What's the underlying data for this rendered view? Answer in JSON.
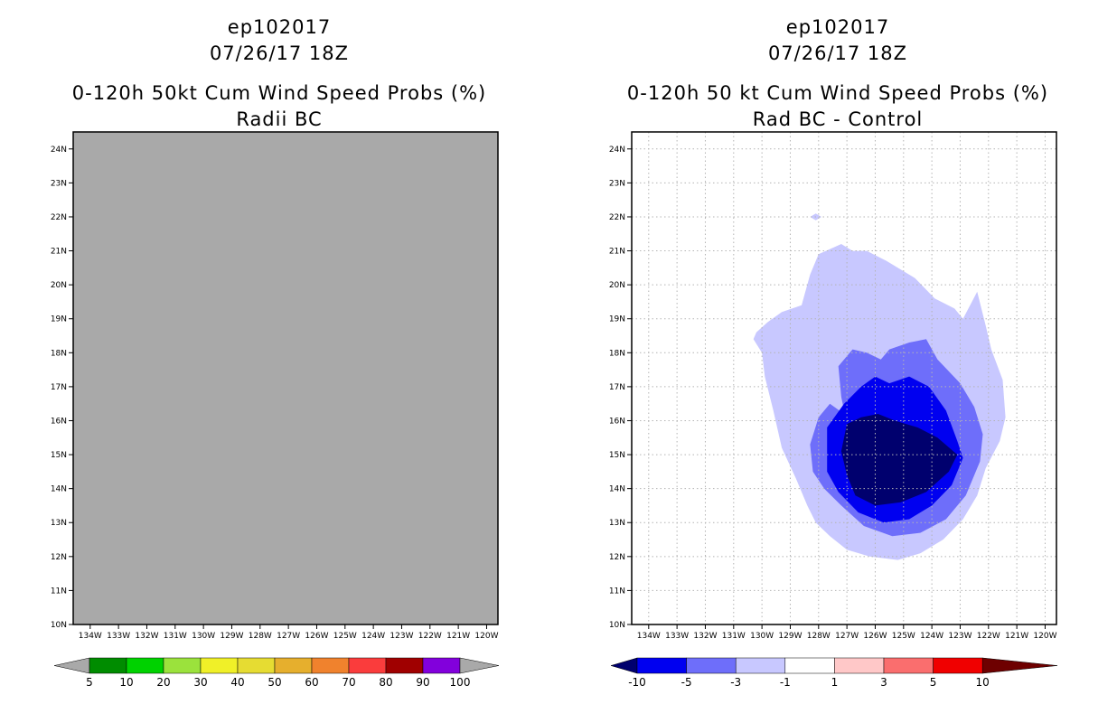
{
  "chart_data": [
    {
      "type": "heatmap",
      "storm_id": "ep102017",
      "date": "07/26/17 18Z",
      "title": "0-120h 50kt Cum Wind Speed Probs (%)",
      "subtitle": "Radii BC",
      "x_ticks": [
        "134W",
        "133W",
        "132W",
        "131W",
        "130W",
        "129W",
        "128W",
        "127W",
        "126W",
        "125W",
        "124W",
        "123W",
        "122W",
        "121W",
        "120W"
      ],
      "y_ticks": [
        "10N",
        "11N",
        "12N",
        "13N",
        "14N",
        "15N",
        "16N",
        "17N",
        "18N",
        "19N",
        "20N",
        "21N",
        "22N",
        "23N",
        "24N"
      ],
      "xlim": [
        -134.6,
        -119.6
      ],
      "ylim": [
        10,
        24.5
      ],
      "grid": false,
      "field": "undefined (entire domain gray)",
      "fill_color": "#a9a9a9",
      "colorbar": {
        "labels": [
          "5",
          "10",
          "20",
          "30",
          "40",
          "50",
          "60",
          "70",
          "80",
          "90",
          "100"
        ],
        "colors": [
          "#008c00",
          "#00d200",
          "#9be23c",
          "#f0f028",
          "#e6dc32",
          "#e6af2d",
          "#f0822d",
          "#fa3c3c",
          "#a00000",
          "#8200dc"
        ],
        "end_color": "#a9a9a9"
      }
    },
    {
      "type": "heatmap",
      "storm_id": "ep102017",
      "date": "07/26/17 18Z",
      "title": "0-120h 50 kt Cum Wind Speed Probs (%)",
      "subtitle": "Rad BC - Control",
      "x_ticks": [
        "134W",
        "133W",
        "132W",
        "131W",
        "130W",
        "129W",
        "128W",
        "127W",
        "126W",
        "125W",
        "124W",
        "123W",
        "122W",
        "121W",
        "120W"
      ],
      "y_ticks": [
        "10N",
        "11N",
        "12N",
        "13N",
        "14N",
        "15N",
        "16N",
        "17N",
        "18N",
        "19N",
        "20N",
        "21N",
        "22N",
        "23N",
        "24N"
      ],
      "xlim": [
        -134.6,
        -119.6
      ],
      "ylim": [
        10,
        24.5
      ],
      "grid": true,
      "contours": [
        {
          "level": "-1 to -3",
          "color": "#c8c8ff",
          "points": [
            [
              -130.2,
              18.6
            ],
            [
              -129.8,
              18.9
            ],
            [
              -129.3,
              19.2
            ],
            [
              -128.6,
              19.4
            ],
            [
              -128.3,
              20.3
            ],
            [
              -128.0,
              20.9
            ],
            [
              -127.2,
              21.2
            ],
            [
              -126.8,
              21.0
            ],
            [
              -126.3,
              21.0
            ],
            [
              -125.6,
              20.7
            ],
            [
              -124.6,
              20.2
            ],
            [
              -123.9,
              19.6
            ],
            [
              -123.2,
              19.3
            ],
            [
              -122.9,
              19.0
            ],
            [
              -122.4,
              19.8
            ],
            [
              -122.1,
              18.8
            ],
            [
              -121.9,
              18.1
            ],
            [
              -121.5,
              17.2
            ],
            [
              -121.4,
              16.1
            ],
            [
              -121.6,
              15.4
            ],
            [
              -122.1,
              14.6
            ],
            [
              -122.4,
              13.8
            ],
            [
              -122.9,
              13.1
            ],
            [
              -123.6,
              12.5
            ],
            [
              -124.4,
              12.1
            ],
            [
              -125.2,
              11.9
            ],
            [
              -126.2,
              12.0
            ],
            [
              -127.0,
              12.2
            ],
            [
              -127.6,
              12.6
            ],
            [
              -128.1,
              13.0
            ],
            [
              -128.4,
              13.5
            ],
            [
              -128.8,
              14.3
            ],
            [
              -129.3,
              15.2
            ],
            [
              -129.6,
              16.3
            ],
            [
              -129.9,
              17.3
            ],
            [
              -130.0,
              18.0
            ],
            [
              -130.3,
              18.4
            ]
          ]
        },
        {
          "level": "-3 to -5",
          "color": "#6e6efa",
          "points": [
            [
              -126.9,
              15.5
            ],
            [
              -127.2,
              16.7
            ],
            [
              -127.3,
              17.6
            ],
            [
              -126.8,
              18.1
            ],
            [
              -126.3,
              18.0
            ],
            [
              -125.8,
              17.8
            ],
            [
              -125.5,
              18.1
            ],
            [
              -124.8,
              18.3
            ],
            [
              -124.2,
              18.4
            ],
            [
              -123.8,
              17.8
            ],
            [
              -123.0,
              17.1
            ],
            [
              -122.5,
              16.4
            ],
            [
              -122.2,
              15.6
            ],
            [
              -122.3,
              14.8
            ],
            [
              -122.8,
              13.8
            ],
            [
              -123.5,
              13.1
            ],
            [
              -124.4,
              12.7
            ],
            [
              -125.4,
              12.6
            ],
            [
              -126.4,
              12.9
            ],
            [
              -127.2,
              13.5
            ],
            [
              -127.8,
              14.0
            ],
            [
              -128.2,
              14.5
            ],
            [
              -128.3,
              15.3
            ],
            [
              -128.0,
              16.1
            ],
            [
              -127.6,
              16.5
            ],
            [
              -127.1,
              16.2
            ]
          ]
        },
        {
          "level": "-5 to -10",
          "color": "#0000f0",
          "points": [
            [
              -127.7,
              15.3
            ],
            [
              -127.7,
              15.8
            ],
            [
              -127.1,
              16.5
            ],
            [
              -126.5,
              17.0
            ],
            [
              -126.0,
              17.3
            ],
            [
              -125.5,
              17.1
            ],
            [
              -124.8,
              17.3
            ],
            [
              -124.1,
              17.0
            ],
            [
              -123.5,
              16.3
            ],
            [
              -123.1,
              15.4
            ],
            [
              -122.9,
              14.9
            ],
            [
              -123.3,
              14.1
            ],
            [
              -124.0,
              13.5
            ],
            [
              -124.8,
              13.1
            ],
            [
              -125.7,
              13.0
            ],
            [
              -126.6,
              13.3
            ],
            [
              -127.3,
              13.9
            ],
            [
              -127.7,
              14.5
            ]
          ]
        },
        {
          "level": "< -10",
          "color": "#00006e",
          "points": [
            [
              -127.2,
              15.1
            ],
            [
              -127.0,
              15.9
            ],
            [
              -126.5,
              16.1
            ],
            [
              -125.9,
              16.2
            ],
            [
              -125.3,
              16.0
            ],
            [
              -124.5,
              15.8
            ],
            [
              -123.8,
              15.5
            ],
            [
              -123.1,
              15.0
            ],
            [
              -123.4,
              14.5
            ],
            [
              -124.2,
              13.9
            ],
            [
              -125.1,
              13.6
            ],
            [
              -126.0,
              13.5
            ],
            [
              -126.7,
              13.8
            ],
            [
              -127.0,
              14.4
            ]
          ]
        }
      ],
      "islands": [
        {
          "level": "-1 to -3",
          "color": "#c8c8ff",
          "points": [
            [
              -128.1,
              22.1
            ],
            [
              -127.9,
              22.0
            ],
            [
              -128.1,
              21.9
            ],
            [
              -128.3,
              22.0
            ]
          ]
        }
      ],
      "colorbar": {
        "labels": [
          "-10",
          "-5",
          "-3",
          "-1",
          "1",
          "3",
          "5",
          "10"
        ],
        "colors": [
          "#0000f0",
          "#6e6efa",
          "#c8c8ff",
          "#ffffff",
          "#ffc8c8",
          "#fa6e6e",
          "#f00000"
        ],
        "low_color": "#00006e",
        "high_color": "#6e0000"
      }
    }
  ]
}
